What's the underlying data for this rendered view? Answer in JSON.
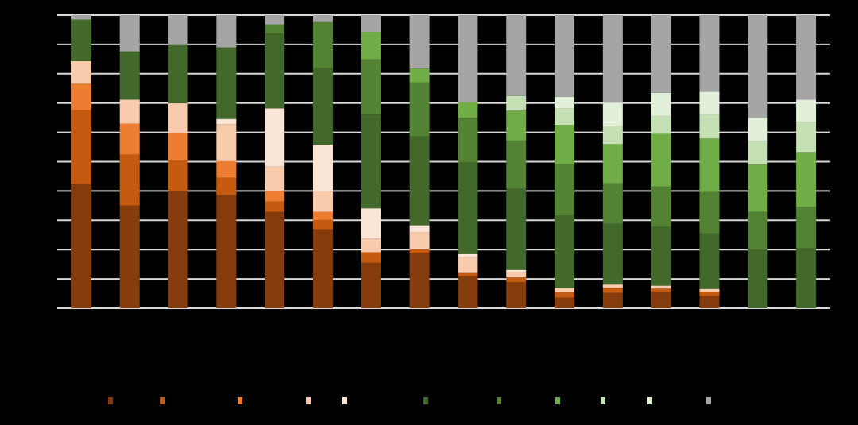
{
  "chart_data": {
    "type": "bar",
    "stacked": true,
    "normalized_percent": true,
    "ylim": [
      0,
      100
    ],
    "grid": true,
    "legend_placement": "bottom",
    "background": "#000000",
    "gridline_color": "#d9d9d9",
    "categories": [
      "",
      "",
      "",
      "",
      "",
      "",
      "",
      "",
      "",
      "",
      "",
      "",
      "",
      "",
      "",
      ""
    ],
    "series": [
      {
        "color": "#843c0c",
        "values": [
          42.3,
          35.1,
          40.1,
          38.6,
          32.9,
          26.9,
          15.5,
          18.7,
          10.9,
          8.9,
          3.6,
          5.2,
          5.4,
          4.2,
          0,
          0
        ]
      },
      {
        "color": "#c55a11",
        "values": [
          25.3,
          17.3,
          10.3,
          5.9,
          3.5,
          3.3,
          3.6,
          1.4,
          1.1,
          1.6,
          1.8,
          1.8,
          1.3,
          1.4,
          0,
          0
        ]
      },
      {
        "color": "#ed7d31",
        "values": [
          9.0,
          10.6,
          9.3,
          5.7,
          3.7,
          2.7,
          0,
          0,
          0,
          0,
          0,
          0,
          0,
          0,
          0,
          0
        ]
      },
      {
        "color": "#f8cbad",
        "values": [
          7.7,
          8.2,
          10.2,
          12.6,
          8.2,
          7.0,
          4.7,
          5.9,
          5.4,
          1.8,
          1.5,
          1.1,
          1.0,
          1.0,
          0,
          0
        ]
      },
      {
        "color": "#fbe5d6",
        "values": [
          0,
          0,
          0,
          1.8,
          19.9,
          15.9,
          10.3,
          2.3,
          1.1,
          0.8,
          0,
          0,
          0,
          0,
          0,
          0
        ]
      },
      {
        "color": "#43682b",
        "values": [
          14.2,
          16.4,
          19.9,
          24.4,
          25.5,
          26.1,
          32.0,
          30.3,
          31.2,
          27.6,
          24.7,
          20.7,
          20.1,
          19.0,
          20.1,
          20.4
        ]
      },
      {
        "color": "#548235",
        "values": [
          0,
          0,
          0,
          0,
          3.1,
          15.7,
          18.8,
          18.5,
          15.3,
          16.5,
          17.5,
          13.8,
          13.8,
          14.1,
          12.8,
          14.2
        ]
      },
      {
        "color": "#70ad47",
        "values": [
          0,
          0,
          0,
          0,
          0,
          0,
          9.4,
          4.7,
          5.3,
          10.2,
          13.5,
          13.4,
          17.9,
          18.2,
          16.1,
          18.7
        ]
      },
      {
        "color": "#c5e0b4",
        "values": [
          0,
          0,
          0,
          0,
          0,
          0,
          0,
          0,
          0,
          5.0,
          5.5,
          6.2,
          6.1,
          8.0,
          8.0,
          10.2
        ]
      },
      {
        "color": "#e2f0d9",
        "values": [
          0,
          0,
          0,
          0,
          0,
          0,
          0,
          0,
          0,
          0,
          4.0,
          7.9,
          7.9,
          8.0,
          8.0,
          7.7
        ]
      },
      {
        "color": "#a5a5a5",
        "values": [
          1.5,
          12.4,
          10.2,
          11.0,
          3.2,
          2.4,
          5.7,
          18.2,
          29.7,
          27.6,
          27.9,
          29.9,
          26.5,
          26.1,
          35.0,
          28.8
        ]
      }
    ]
  }
}
